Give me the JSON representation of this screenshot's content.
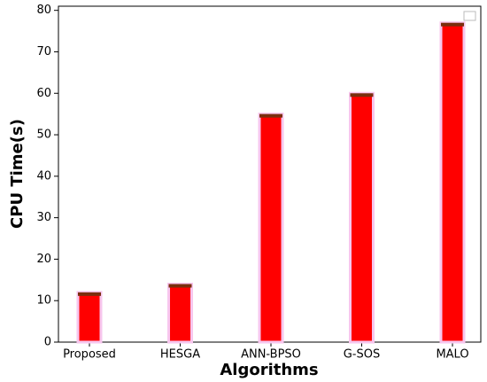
{
  "chart_data": {
    "type": "bar",
    "x_label": "Algorithms",
    "y_label": "CPU Time(s)",
    "categories": [
      "Proposed",
      "HESGA",
      "ANN-BPSO",
      "G-SOS",
      "MALO"
    ],
    "values": [
      12,
      14,
      55,
      60,
      77
    ],
    "color": "#ff0000",
    "edge_color": "#7a2e0e",
    "ylim": [
      0,
      81
    ],
    "yticks": [
      0,
      10,
      20,
      30,
      40,
      50,
      60,
      70,
      80
    ],
    "grid": false
  }
}
